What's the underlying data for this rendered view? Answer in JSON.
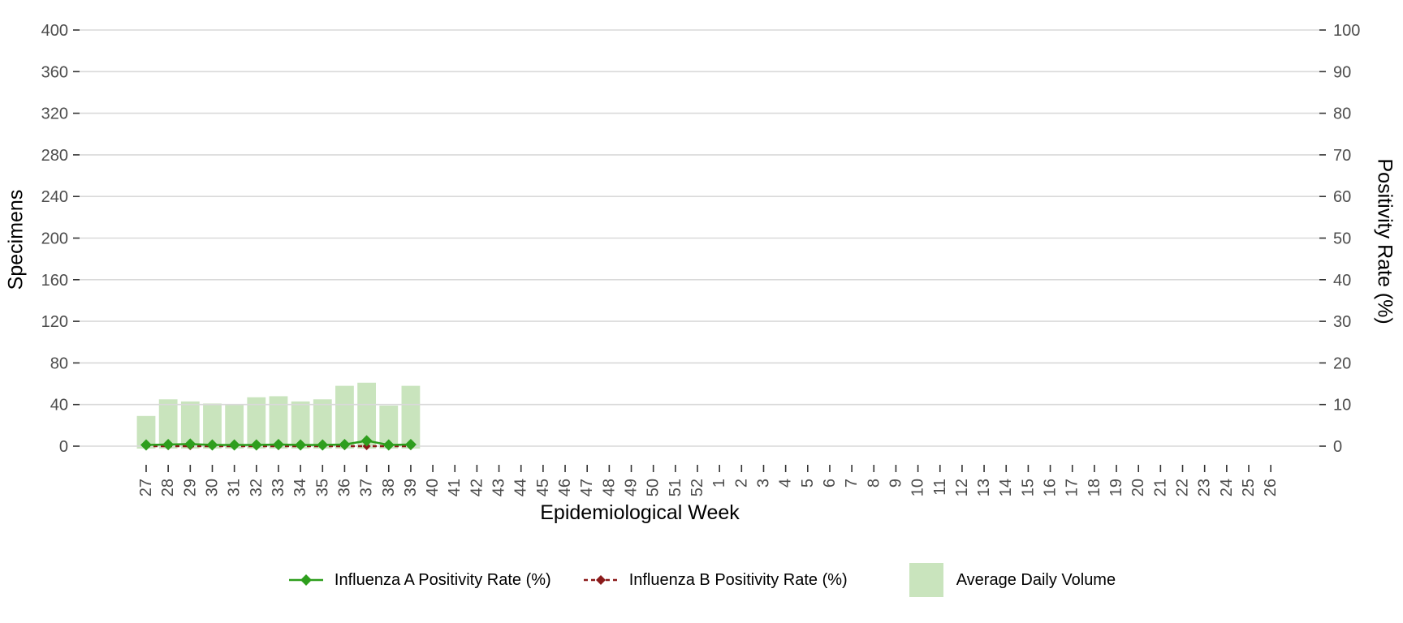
{
  "chart_data": {
    "type": [
      "bar",
      "line"
    ],
    "title": "",
    "x_axis": {
      "label": "Epidemiological Week",
      "categories": [
        "27",
        "28",
        "29",
        "30",
        "31",
        "32",
        "33",
        "34",
        "35",
        "36",
        "37",
        "38",
        "39",
        "40",
        "41",
        "42",
        "43",
        "44",
        "45",
        "46",
        "47",
        "48",
        "49",
        "50",
        "51",
        "52",
        "1",
        "2",
        "3",
        "4",
        "5",
        "6",
        "7",
        "8",
        "9",
        "10",
        "11",
        "12",
        "13",
        "14",
        "15",
        "16",
        "17",
        "18",
        "19",
        "20",
        "21",
        "22",
        "23",
        "24",
        "25",
        "26"
      ]
    },
    "left_axis": {
      "label": "Specimens",
      "range": [
        0,
        400
      ],
      "ticks": [
        0,
        40,
        80,
        120,
        160,
        200,
        240,
        280,
        320,
        360,
        400
      ]
    },
    "right_axis": {
      "label": "Positivity Rate (%)",
      "range": [
        0,
        100
      ],
      "ticks": [
        0,
        10,
        20,
        30,
        40,
        50,
        60,
        70,
        80,
        90,
        100
      ]
    },
    "grid": "horizontal-only",
    "legend_position": "bottom",
    "series": [
      {
        "name": "Influenza A Positivity Rate (%)",
        "type": "line",
        "axis": "right",
        "color": "#2e9e1d",
        "line_style": "solid",
        "marker": "diamond",
        "x": [
          "27",
          "28",
          "29",
          "30",
          "31",
          "32",
          "33",
          "34",
          "35",
          "36",
          "37",
          "38",
          "39"
        ],
        "values": [
          0.3,
          0.4,
          0.5,
          0.3,
          0.3,
          0.3,
          0.4,
          0.3,
          0.3,
          0.4,
          1.3,
          0.3,
          0.4
        ]
      },
      {
        "name": "Influenza B Positivity Rate (%)",
        "type": "line",
        "axis": "right",
        "color": "#8b1a1a",
        "line_style": "dashed",
        "marker": "diamond",
        "x": [
          "27",
          "28",
          "29",
          "30",
          "31",
          "32",
          "33",
          "34",
          "35",
          "36",
          "37",
          "38",
          "39"
        ],
        "values": [
          0,
          0,
          0,
          0,
          0,
          0,
          0,
          0,
          0,
          0,
          0,
          0,
          0
        ]
      },
      {
        "name": "Average Daily Volume",
        "type": "bar",
        "axis": "left",
        "color": "#c9e4bd",
        "x": [
          "27",
          "28",
          "29",
          "30",
          "31",
          "32",
          "33",
          "34",
          "35",
          "36",
          "37",
          "38",
          "39"
        ],
        "values": [
          29,
          45,
          43,
          41,
          40,
          47,
          48,
          43,
          45,
          58,
          61,
          39,
          58
        ]
      }
    ],
    "colors": {
      "gridline": "#d9d9d9",
      "tick_mark": "#333333",
      "tick_label": "#4d4d4d",
      "axis_title": "#000000"
    }
  }
}
